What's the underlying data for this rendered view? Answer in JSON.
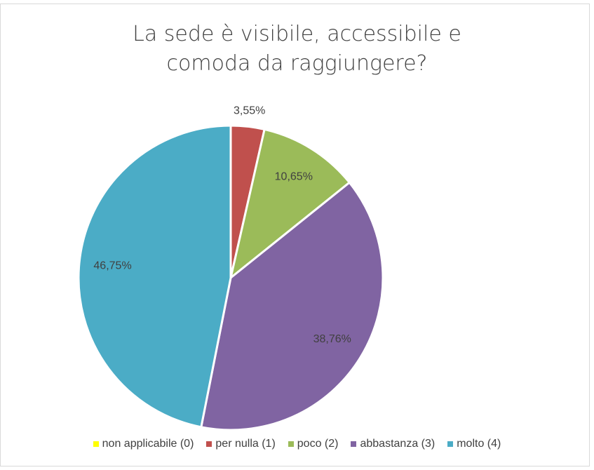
{
  "chart_data": {
    "type": "pie",
    "title": "La sede è visibile, accessibile e comoda da raggiungere?",
    "categories": [
      "non applicabile (0)",
      "per nulla (1)",
      "poco (2)",
      "abbastanza (3)",
      "molto (4)"
    ],
    "values": [
      0,
      3.55,
      10.65,
      38.76,
      46.75
    ],
    "value_labels": [
      null,
      "3,55%",
      "10,65%",
      "38,76%",
      "46,75%"
    ],
    "colors": [
      "#ffff00",
      "#c0504d",
      "#9bbb59",
      "#8064a2",
      "#4bacc6"
    ],
    "legend": "bottom"
  }
}
